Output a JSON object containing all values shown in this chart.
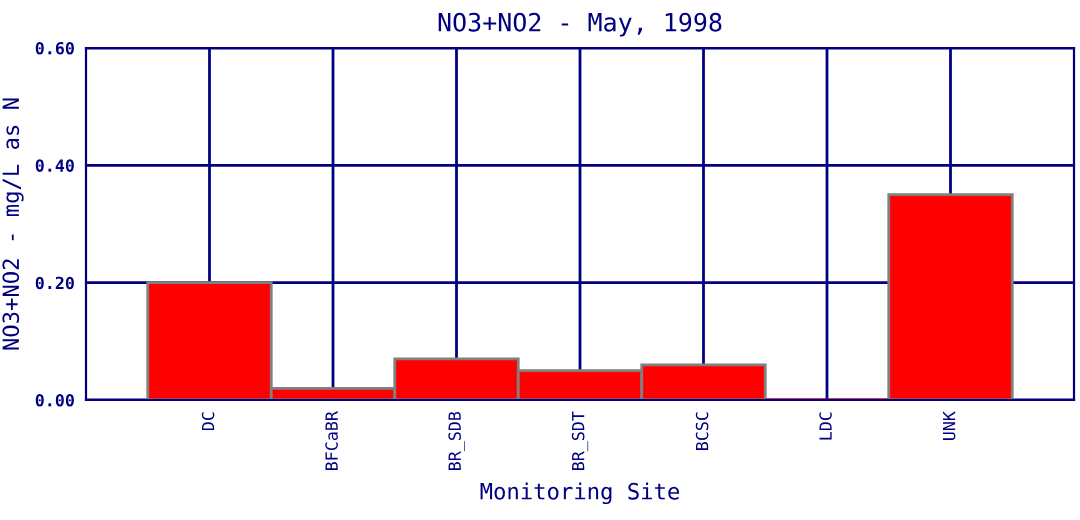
{
  "chart_data": {
    "type": "bar",
    "title": "NO3+NO2 - May, 1998",
    "xlabel": "Monitoring Site",
    "ylabel": "NO3+NO2 - mg/L as N",
    "categories": [
      "DC",
      "BFCaBR",
      "BR_SDB",
      "BR_SDT",
      "BCSC",
      "LDC",
      "UNK"
    ],
    "values": [
      0.2,
      0.02,
      0.07,
      0.05,
      0.06,
      0,
      0.35
    ],
    "color": "#ff0000",
    "ylim": [
      0,
      0.6
    ],
    "yticks": [
      {
        "value": 0,
        "label": "0.00"
      },
      {
        "value": 0.2,
        "label": "0.20"
      },
      {
        "value": 0.4,
        "label": "0.40"
      },
      {
        "value": 0.6,
        "label": "0.60"
      }
    ],
    "grid": true
  }
}
